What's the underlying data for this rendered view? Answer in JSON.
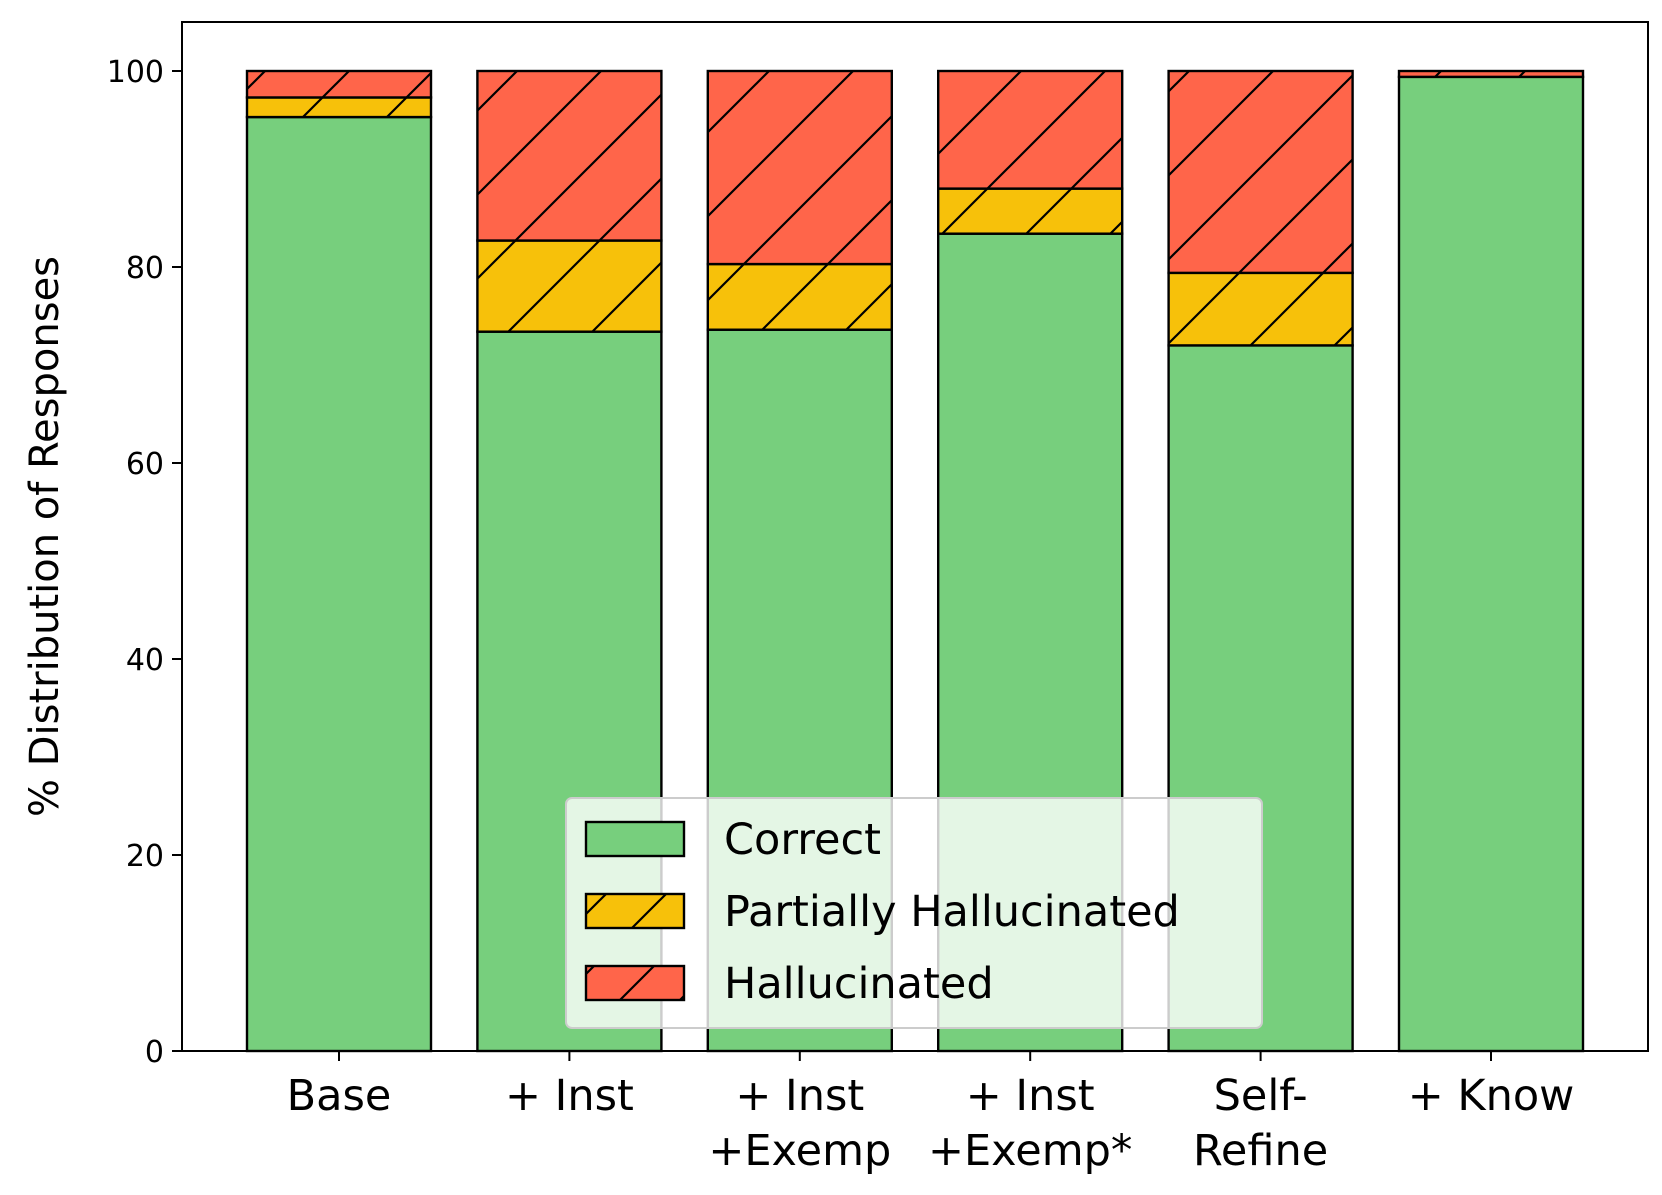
{
  "chart_data": {
    "type": "bar",
    "stacked": true,
    "title": "",
    "xlabel": "",
    "ylabel": "% Distribution of Responses",
    "ylim": [
      0,
      105
    ],
    "yticks": [
      0,
      20,
      40,
      60,
      80,
      100
    ],
    "grid": false,
    "legend_position": "lower-center",
    "categories": [
      [
        "Base"
      ],
      [
        "+ Inst"
      ],
      [
        "+ Inst",
        "+Exemp"
      ],
      [
        "+ Inst",
        "+Exemp*"
      ],
      [
        "Self-",
        "Refine"
      ],
      [
        "+ Know"
      ]
    ],
    "series": [
      {
        "name": "Correct",
        "color": "#77cf7d",
        "hatch": "none",
        "values": [
          95.3,
          73.4,
          73.6,
          83.4,
          72.0,
          99.4
        ]
      },
      {
        "name": "Partially Hallucinated",
        "color": "#f7c10a",
        "hatch": "diagonal",
        "values": [
          2.0,
          9.3,
          6.7,
          4.6,
          7.4,
          0.0
        ]
      },
      {
        "name": "Hallucinated",
        "color": "#ff654a",
        "hatch": "diagonal",
        "values": [
          2.7,
          17.3,
          19.7,
          12.0,
          20.6,
          0.6
        ]
      }
    ]
  }
}
